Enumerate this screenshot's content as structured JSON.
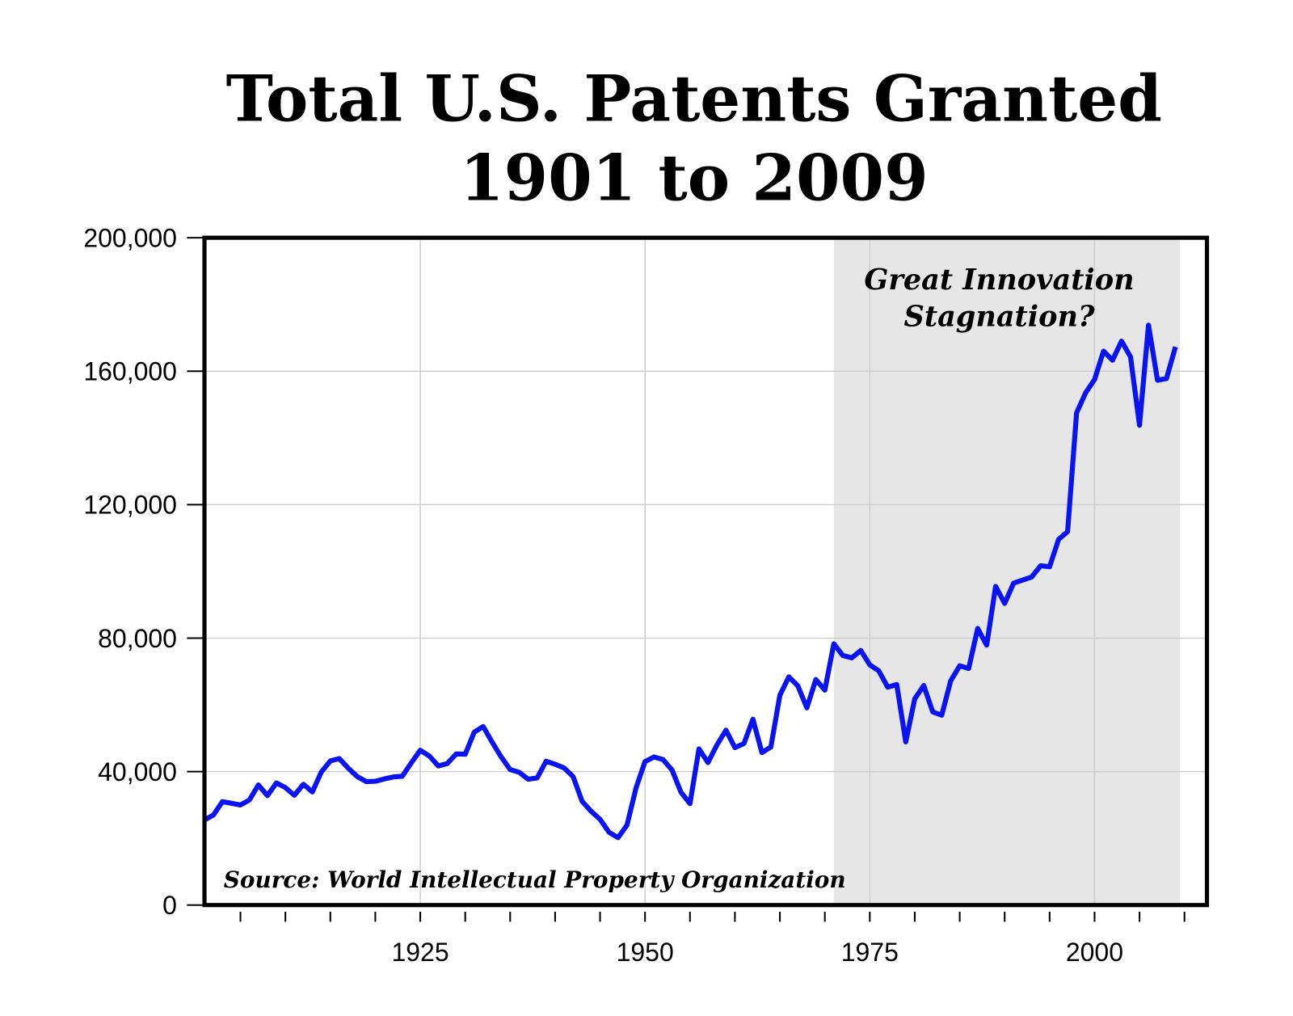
{
  "chart_data": {
    "type": "line",
    "title": [
      "Total U.S. Patents Granted",
      "1901 to 2009"
    ],
    "annotation": [
      "Great Innovation",
      "Stagnation?"
    ],
    "source": "Source: World Intellectual  Property Organization",
    "shaded_range": [
      1971,
      2009.5
    ],
    "shade_color": "#e6e6e6",
    "grid": true,
    "xlim": [
      1901,
      2012.5
    ],
    "xticks": [
      1925,
      1950,
      1975,
      2000
    ],
    "xminor_ticks": [
      1905,
      1910,
      1915,
      1920,
      1925,
      1930,
      1935,
      1940,
      1945,
      1950,
      1955,
      1960,
      1965,
      1970,
      1975,
      1980,
      1985,
      1990,
      1995,
      2000,
      2005,
      2010
    ],
    "ylim": [
      0,
      200000
    ],
    "yticks": [
      0,
      {
        "value": 40000,
        "label": "40,000"
      },
      {
        "value": 80000,
        "label": "80,000"
      },
      {
        "value": 120000,
        "label": "120,000"
      },
      {
        "value": 160000,
        "label": "160,000"
      },
      {
        "value": 200000,
        "label": "200,000"
      }
    ],
    "x": [
      1901,
      1902,
      1903,
      1904,
      1905,
      1906,
      1907,
      1908,
      1909,
      1910,
      1911,
      1912,
      1913,
      1914,
      1915,
      1916,
      1917,
      1918,
      1919,
      1920,
      1921,
      1922,
      1923,
      1924,
      1925,
      1926,
      1927,
      1928,
      1929,
      1930,
      1931,
      1932,
      1933,
      1934,
      1935,
      1936,
      1937,
      1938,
      1939,
      1940,
      1941,
      1942,
      1943,
      1944,
      1945,
      1946,
      1947,
      1948,
      1949,
      1950,
      1951,
      1952,
      1953,
      1954,
      1955,
      1956,
      1957,
      1958,
      1959,
      1960,
      1961,
      1962,
      1963,
      1964,
      1965,
      1966,
      1967,
      1968,
      1969,
      1970,
      1971,
      1972,
      1973,
      1974,
      1975,
      1976,
      1977,
      1978,
      1979,
      1980,
      1981,
      1982,
      1983,
      1984,
      1985,
      1986,
      1987,
      1988,
      1989,
      1990,
      1991,
      1992,
      1993,
      1994,
      1995,
      1996,
      1997,
      1998,
      1999,
      2000,
      2001,
      2002,
      2003,
      2004,
      2005,
      2006,
      2007,
      2008,
      2009
    ],
    "series": [
      {
        "name": "Total U.S. Patents Granted",
        "color": "#0a14f0",
        "values": [
          25500,
          27000,
          31000,
          30500,
          30000,
          31500,
          36000,
          32800,
          36600,
          35200,
          32900,
          36200,
          33900,
          39900,
          43200,
          43900,
          41000,
          38500,
          37000,
          37100,
          37800,
          38400,
          38600,
          42600,
          46400,
          44700,
          41700,
          42400,
          45300,
          45200,
          51800,
          53500,
          48800,
          44400,
          40600,
          39800,
          37700,
          38100,
          43100,
          42200,
          41100,
          38500,
          31100,
          28100,
          25700,
          21800,
          20200,
          24000,
          35100,
          43000,
          44400,
          43600,
          40500,
          33800,
          30400,
          46800,
          42700,
          48000,
          52400,
          47200,
          48400,
          55700,
          45700,
          47400,
          62900,
          68400,
          65700,
          59100,
          67600,
          64400,
          78300,
          74800,
          74100,
          76300,
          72000,
          70200,
          65300,
          66100,
          48900,
          61800,
          65800,
          57900,
          56900,
          67200,
          71700,
          70900,
          82900,
          77900,
          95500,
          90400,
          96500,
          97400,
          98300,
          101700,
          101400,
          109600,
          111900,
          147500,
          153500,
          157500,
          166000,
          163300,
          169000,
          164300,
          143800,
          173800,
          157300,
          157800,
          167300
        ]
      }
    ]
  }
}
